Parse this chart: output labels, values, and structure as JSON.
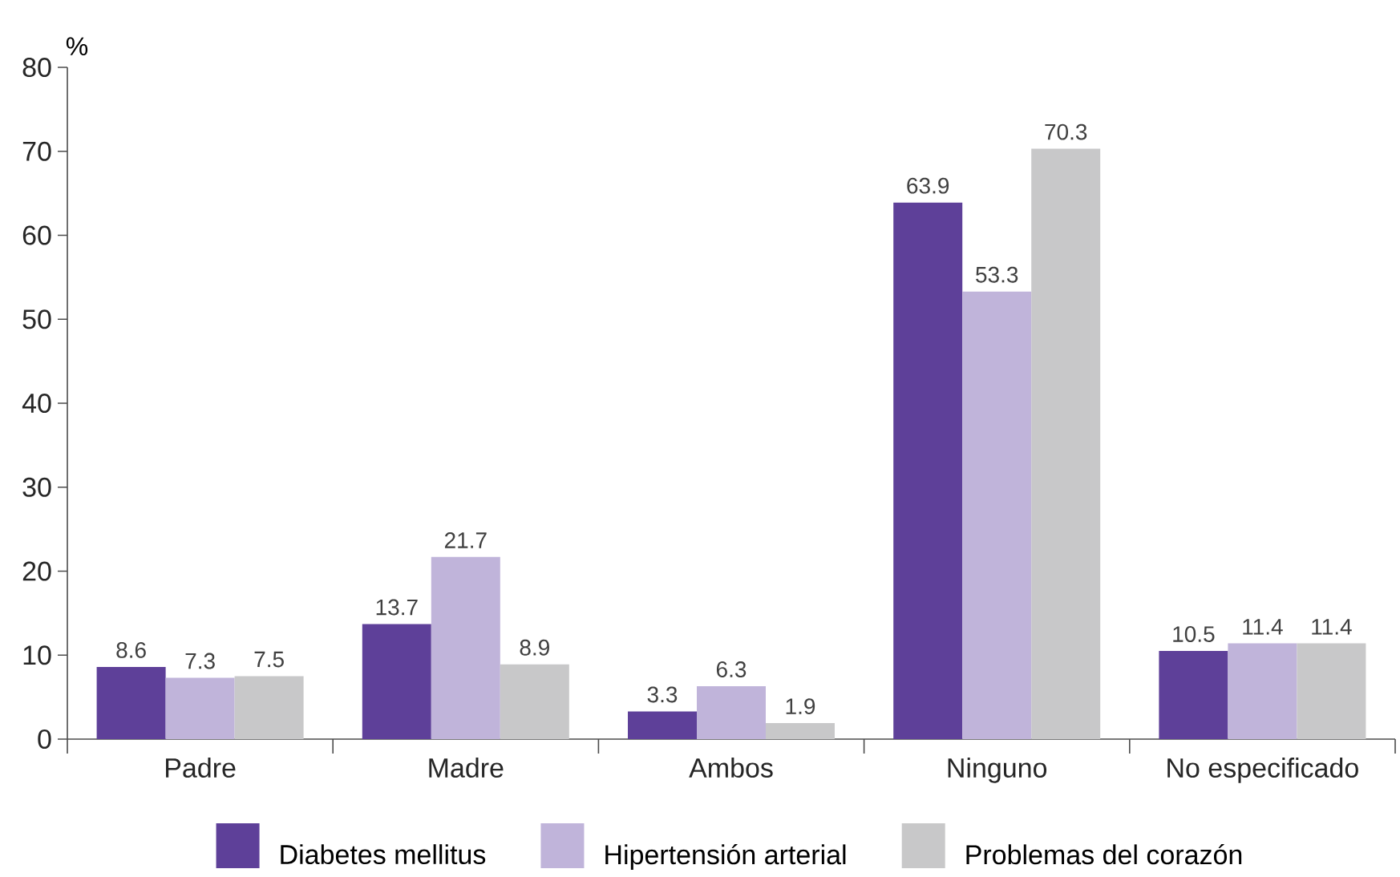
{
  "chart_data": {
    "type": "bar",
    "ylabel": "%",
    "categories": [
      "Padre",
      "Madre",
      "Ambos",
      "Ninguno",
      "No especificado"
    ],
    "series": [
      {
        "name": "Diabetes mellitus",
        "color": "#5e4099",
        "values": [
          8.6,
          13.7,
          3.3,
          63.9,
          10.5
        ]
      },
      {
        "name": "Hipertensión arterial",
        "color": "#c0b4da",
        "values": [
          7.3,
          21.7,
          6.3,
          53.3,
          11.4
        ]
      },
      {
        "name": "Problemas del corazón",
        "color": "#c8c8c9",
        "values": [
          7.5,
          8.9,
          1.9,
          70.3,
          11.4
        ]
      }
    ],
    "ylim": [
      0,
      80
    ],
    "yticks": [
      0,
      10,
      20,
      30,
      40,
      50,
      60,
      70,
      80
    ],
    "data_labels": true,
    "legend": "bottom",
    "grid": false
  }
}
